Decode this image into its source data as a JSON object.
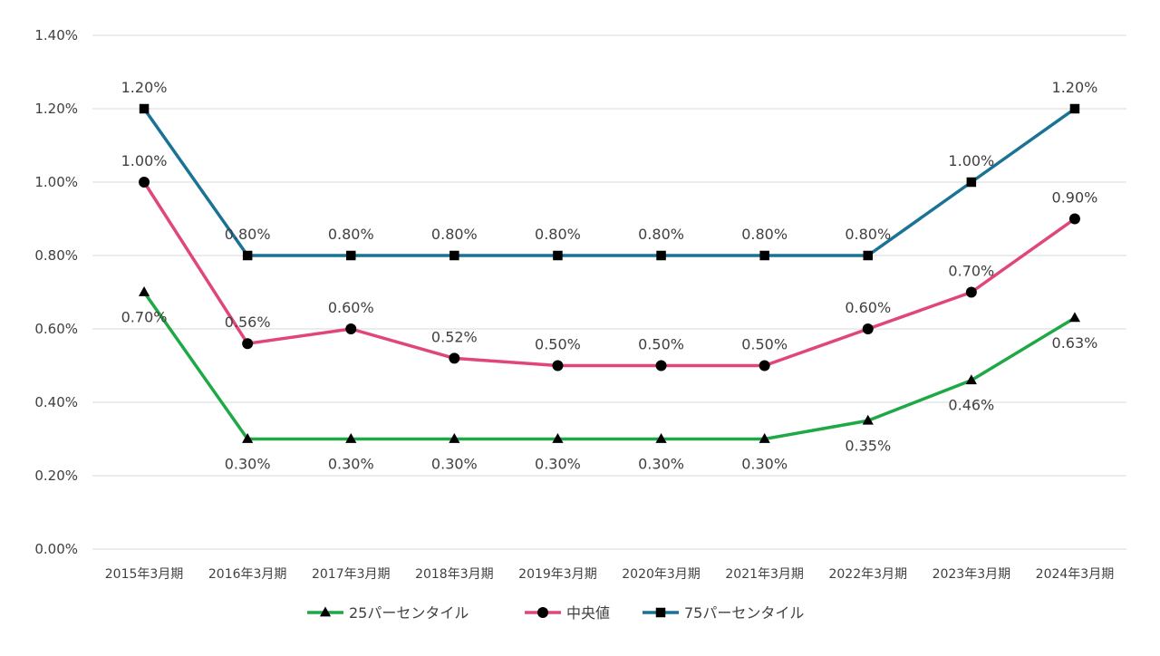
{
  "chart_data": {
    "type": "line",
    "categories": [
      "2015年3月期",
      "2016年3月期",
      "2017年3月期",
      "2018年3月期",
      "2019年3月期",
      "2020年3月期",
      "2021年3月期",
      "2022年3月期",
      "2023年3月期",
      "2024年3月期"
    ],
    "ylim": [
      0,
      1.4
    ],
    "yticks": [
      "0.00%",
      "0.20%",
      "0.40%",
      "0.60%",
      "0.80%",
      "1.00%",
      "1.20%",
      "1.40%"
    ],
    "grid": true,
    "legend_position": "bottom",
    "series": [
      {
        "name": "25パーセンタイル",
        "color": "#1FA846",
        "marker": "triangle",
        "label_position": "below",
        "values": [
          0.7,
          0.3,
          0.3,
          0.3,
          0.3,
          0.3,
          0.3,
          0.35,
          0.46,
          0.63
        ],
        "labels": [
          "0.70%",
          "0.30%",
          "0.30%",
          "0.30%",
          "0.30%",
          "0.30%",
          "0.30%",
          "0.35%",
          "0.46%",
          "0.63%"
        ]
      },
      {
        "name": "中央値",
        "color": "#E0457B",
        "marker": "circle",
        "label_position": "above",
        "values": [
          1.0,
          0.56,
          0.6,
          0.52,
          0.5,
          0.5,
          0.5,
          0.6,
          0.7,
          0.9
        ],
        "labels": [
          "1.00%",
          "0.56%",
          "0.60%",
          "0.52%",
          "0.50%",
          "0.50%",
          "0.50%",
          "0.60%",
          "0.70%",
          "0.90%"
        ]
      },
      {
        "name": "75パーセンタイル",
        "color": "#1A7294",
        "marker": "square",
        "label_position": "above",
        "values": [
          1.2,
          0.8,
          0.8,
          0.8,
          0.8,
          0.8,
          0.8,
          0.8,
          1.0,
          1.2
        ],
        "labels": [
          "1.20%",
          "0.80%",
          "0.80%",
          "0.80%",
          "0.80%",
          "0.80%",
          "0.80%",
          "0.80%",
          "1.00%",
          "1.20%"
        ]
      }
    ]
  }
}
